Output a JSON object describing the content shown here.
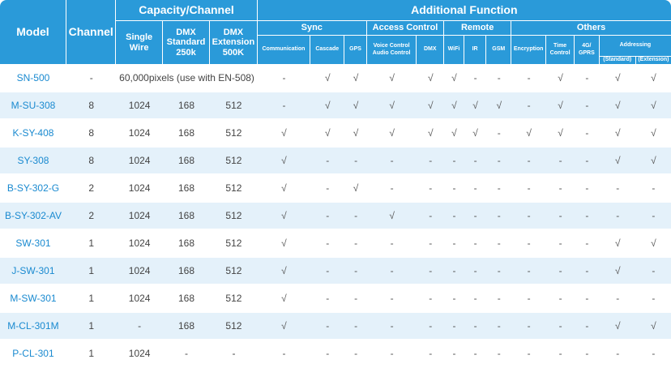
{
  "table": {
    "headers": {
      "model": "Model",
      "channel": "Channel",
      "capacity": "Capacity/Channel",
      "single_wire": "Single Wire",
      "dmx_standard": "DMX Standard 250k",
      "dmx_extension": "DMX Extension 500K",
      "additional": "Additional Function",
      "sync": "Sync",
      "access_control": "Access Control",
      "remote": "Remote",
      "others": "Others",
      "communication": "Communication",
      "cascade": "Cascade",
      "gps": "GPS",
      "voice_audio": "Voice Control Audio Control",
      "dmx": "DMX",
      "wifi": "WiFi",
      "ir": "IR",
      "gsm": "GSM",
      "encryption": "Encryption",
      "time_control": "Time Control",
      "g4_gprs": "4G/ GPRS",
      "addressing": "Addressing",
      "addr_standard": "(Standard)",
      "addr_extension": "(Extension)"
    },
    "rows": [
      {
        "model": "SN-500",
        "channel": "-",
        "capacity": "60,000pixels (use with EN-508)",
        "marks": [
          "-",
          "√",
          "√",
          "√",
          "√",
          "√",
          "-",
          "-",
          "-",
          "√",
          "-",
          "√",
          "√"
        ]
      },
      {
        "model": "M-SU-308",
        "channel": "8",
        "single": "1024",
        "dmx_std": "168",
        "dmx_ext": "512",
        "marks": [
          "-",
          "√",
          "√",
          "√",
          "√",
          "√",
          "√",
          "√",
          "-",
          "√",
          "-",
          "√",
          "√"
        ]
      },
      {
        "model": "K-SY-408",
        "channel": "8",
        "single": "1024",
        "dmx_std": "168",
        "dmx_ext": "512",
        "marks": [
          "√",
          "√",
          "√",
          "√",
          "√",
          "√",
          "√",
          "-",
          "√",
          "√",
          "-",
          "√",
          "√"
        ]
      },
      {
        "model": "SY-308",
        "channel": "8",
        "single": "1024",
        "dmx_std": "168",
        "dmx_ext": "512",
        "marks": [
          "√",
          "-",
          "-",
          "-",
          "-",
          "-",
          "-",
          "-",
          "-",
          "-",
          "-",
          "√",
          "√"
        ]
      },
      {
        "model": "B-SY-302-G",
        "channel": "2",
        "single": "1024",
        "dmx_std": "168",
        "dmx_ext": "512",
        "marks": [
          "√",
          "-",
          "√",
          "-",
          "-",
          "-",
          "-",
          "-",
          "-",
          "-",
          "-",
          "-",
          "-"
        ]
      },
      {
        "model": "B-SY-302-AV",
        "channel": "2",
        "single": "1024",
        "dmx_std": "168",
        "dmx_ext": "512",
        "marks": [
          "√",
          "-",
          "-",
          "√",
          "-",
          "-",
          "-",
          "-",
          "-",
          "-",
          "-",
          "-",
          "-"
        ]
      },
      {
        "model": "SW-301",
        "channel": "1",
        "single": "1024",
        "dmx_std": "168",
        "dmx_ext": "512",
        "marks": [
          "√",
          "-",
          "-",
          "-",
          "-",
          "-",
          "-",
          "-",
          "-",
          "-",
          "-",
          "√",
          "√"
        ]
      },
      {
        "model": "J-SW-301",
        "channel": "1",
        "single": "1024",
        "dmx_std": "168",
        "dmx_ext": "512",
        "marks": [
          "√",
          "-",
          "-",
          "-",
          "-",
          "-",
          "-",
          "-",
          "-",
          "-",
          "-",
          "√",
          "-"
        ]
      },
      {
        "model": "M-SW-301",
        "channel": "1",
        "single": "1024",
        "dmx_std": "168",
        "dmx_ext": "512",
        "marks": [
          "√",
          "-",
          "-",
          "-",
          "-",
          "-",
          "-",
          "-",
          "-",
          "-",
          "-",
          "-",
          "-"
        ]
      },
      {
        "model": "M-CL-301M",
        "channel": "1",
        "single": "-",
        "dmx_std": "168",
        "dmx_ext": "512",
        "marks": [
          "√",
          "-",
          "-",
          "-",
          "-",
          "-",
          "-",
          "-",
          "-",
          "-",
          "-",
          "√",
          "√"
        ]
      },
      {
        "model": "P-CL-301",
        "channel": "1",
        "single": "1024",
        "dmx_std": "-",
        "dmx_ext": "-",
        "marks": [
          "-",
          "-",
          "-",
          "-",
          "-",
          "-",
          "-",
          "-",
          "-",
          "-",
          "-",
          "-",
          "-"
        ]
      }
    ]
  }
}
